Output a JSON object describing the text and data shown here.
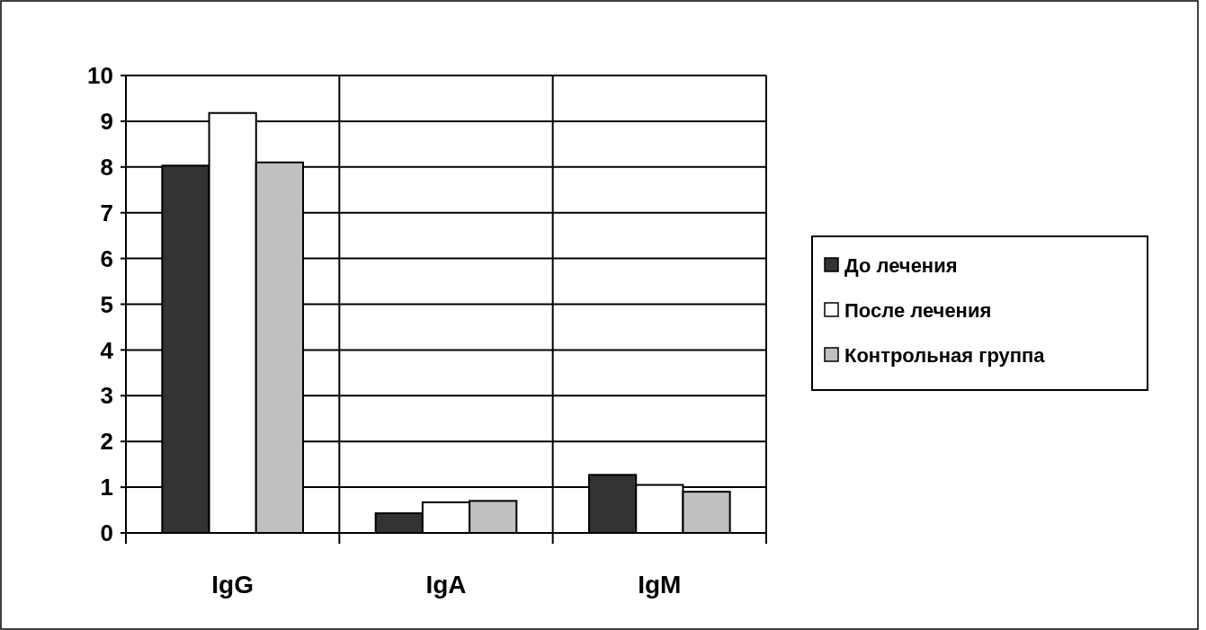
{
  "chart_data": {
    "type": "bar",
    "categories": [
      "IgG",
      "IgA",
      "IgM"
    ],
    "series": [
      {
        "name": "До лечения",
        "color": "#333333",
        "values": [
          8.03,
          0.43,
          1.27
        ]
      },
      {
        "name": "После лечения",
        "color": "#ffffff",
        "values": [
          9.18,
          0.67,
          1.05
        ]
      },
      {
        "name": "Контрольная группа",
        "color": "#c0c0c0",
        "values": [
          8.1,
          0.7,
          0.9
        ]
      }
    ],
    "ylim": [
      0,
      10
    ],
    "yticks": [
      0,
      1,
      2,
      3,
      4,
      5,
      6,
      7,
      8,
      9,
      10
    ],
    "grid": true,
    "legend": "right"
  }
}
